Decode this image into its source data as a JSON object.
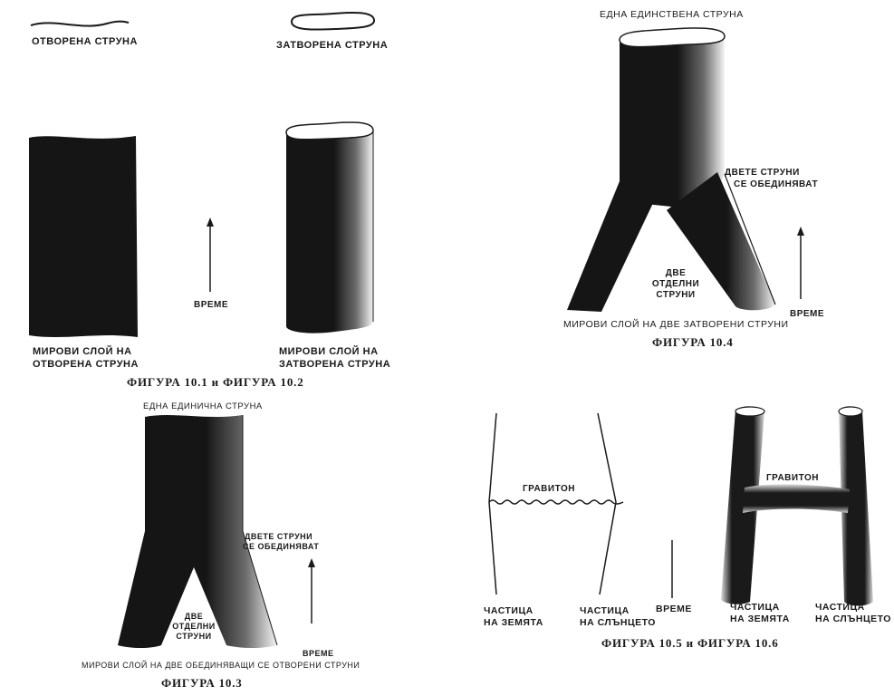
{
  "fig1": {
    "string_label": "ОТВОРЕНА СТРУНА",
    "sheet_label_line1": "МИРОВИ СЛОЙ НА",
    "sheet_label_line2": "ОТВОРЕНА СТРУНА"
  },
  "fig2": {
    "string_label": "ЗАТВОРЕНА СТРУНА",
    "tube_label_line1": "МИРОВИ СЛОЙ НА",
    "tube_label_line2": "ЗАТВОРЕНА СТРУНА"
  },
  "time_label": "ВРЕМЕ",
  "caption_1_2": "ФИГУРА 10.1 и ФИГУРА 10.2",
  "fig3": {
    "top_label": "ЕДНА ЕДИНИЧНА СТРУНА",
    "merge_label_line1": "ДВЕТЕ СТРУНИ",
    "merge_label_line2": "СЕ ОБЕДИНЯВАТ",
    "two_line1": "ДВЕ",
    "two_line2": "ОТДЕЛНИ",
    "two_line3": "СТРУНИ",
    "time_label": "ВРЕМЕ",
    "bottom_label": "МИРОВИ СЛОЙ НА ДВЕ ОБЕДИНЯВАЩИ СЕ ОТВОРЕНИ СТРУНИ",
    "caption": "ФИГУРА 10.3"
  },
  "fig4": {
    "top_label": "ЕДНА ЕДИНСТВЕНА СТРУНА",
    "merge_label_line1": "ДВЕТЕ СТРУНИ",
    "merge_label_line2": "СЕ ОБЕДИНЯВАТ",
    "two_line1": "ДВЕ",
    "two_line2": "ОТДЕЛНИ",
    "two_line3": "СТРУНИ",
    "time_label": "ВРЕМЕ",
    "bottom_label": "МИРОВИ СЛОЙ НА ДВЕ ЗАТВОРЕНИ СТРУНИ",
    "caption": "ФИГУРА 10.4"
  },
  "fig5": {
    "graviton": "ГРАВИТОН",
    "earth_line1": "ЧАСТИЦА",
    "earth_line2": "НА ЗЕМЯТА",
    "sun_line1": "ЧАСТИЦА",
    "sun_line2": "НА СЛЪНЦЕТО",
    "time_label": "ВРЕМЕ"
  },
  "fig6": {
    "graviton": "ГРАВИТОН",
    "earth_line1": "ЧАСТИЦА",
    "earth_line2": "НА ЗЕМЯТА",
    "sun_line1": "ЧАСТИЦА",
    "sun_line2": "НА СЛЪНЦЕТО"
  },
  "caption_5_6": "ФИГУРА 10.5 и ФИГУРА 10.6"
}
